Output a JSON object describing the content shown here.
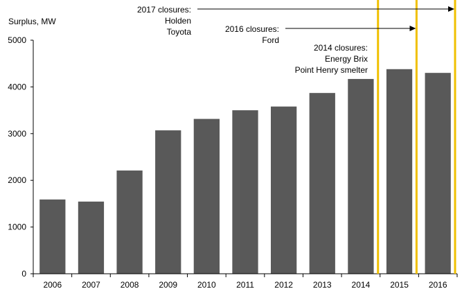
{
  "chart_data": {
    "type": "bar",
    "ylabel": "Surplus, MW",
    "categories": [
      "2006",
      "2007",
      "2008",
      "2009",
      "2010",
      "2011",
      "2012",
      "2013",
      "2014",
      "2015",
      "2016"
    ],
    "values": [
      1590,
      1545,
      2210,
      3070,
      3315,
      3500,
      3580,
      3870,
      4170,
      4380,
      4300
    ],
    "ylim": [
      0,
      5000
    ],
    "yticks": [
      0,
      1000,
      2000,
      3000,
      4000,
      5000
    ],
    "grid": false,
    "bar_color": "#595959",
    "annotation_line_color": "#F0C000",
    "annotations": [
      {
        "lines": [
          "2017 closures:",
          "Holden",
          "Toyota"
        ],
        "marker_after": "2016"
      },
      {
        "lines": [
          "2016 closures:",
          "Ford"
        ],
        "marker_after": "2015"
      },
      {
        "lines": [
          "2014 closures:",
          "Energy Brix",
          "Point Henry smelter"
        ],
        "marker_after": "2014"
      }
    ]
  }
}
